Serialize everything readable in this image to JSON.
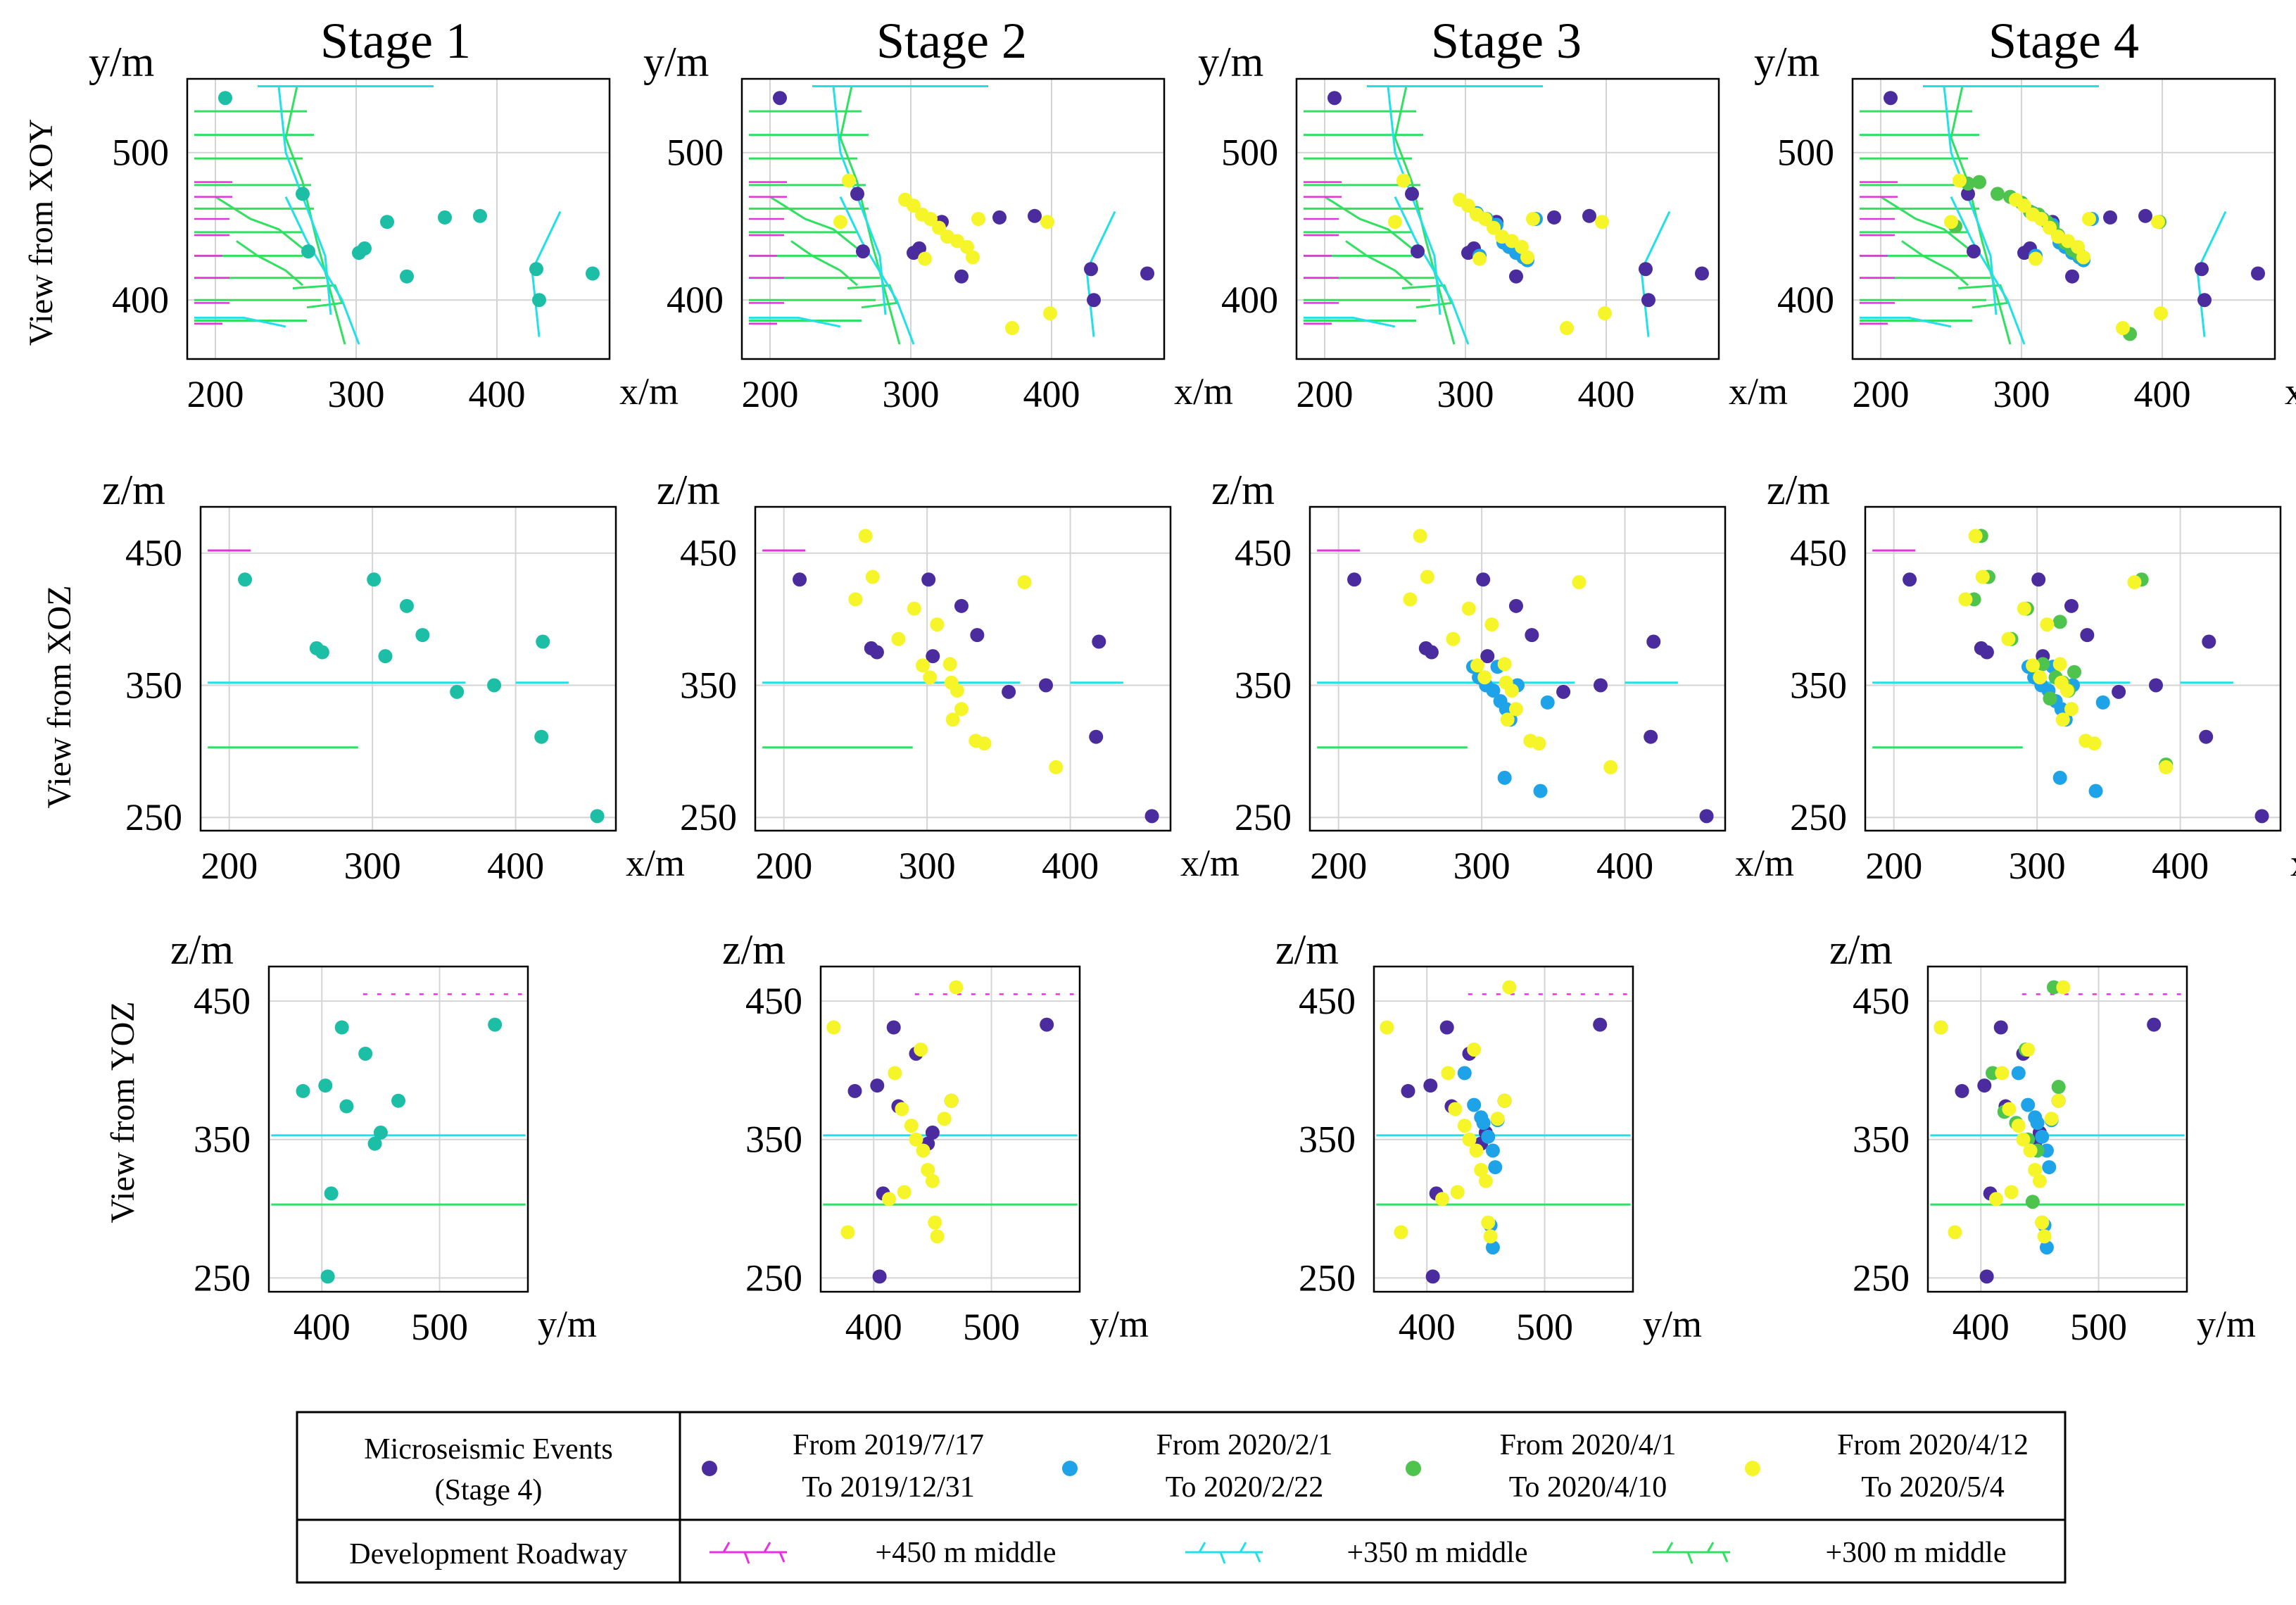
{
  "colors": {
    "period1": "#4b2c9e",
    "period2": "#1fa3e8",
    "period3": "#4ec44e",
    "period4": "#f5f52a",
    "stage1": "#1cbfa6",
    "roadway450": "#e830e0",
    "roadway350": "#22e0e8",
    "roadway300": "#30e060",
    "grid": "#d4d4d4"
  },
  "stage_titles": [
    "Stage 1",
    "Stage 2",
    "Stage 3",
    "Stage 4"
  ],
  "row_labels": [
    "View from XOY",
    "View from XOZ",
    "View from YOZ"
  ],
  "axes": {
    "xoy": {
      "xlabel": "x/m",
      "ylabel": "y/m",
      "xticks": [
        "200",
        "300",
        "400"
      ],
      "yticks": [
        "500",
        "400"
      ]
    },
    "xoz": {
      "xlabel": "x/m",
      "ylabel": "z/m",
      "xticks": [
        "200",
        "300",
        "400"
      ],
      "yticks": [
        "450",
        "350",
        "250"
      ]
    },
    "yoz": {
      "xlabel": "y/m",
      "ylabel": "z/m",
      "xticks": [
        "400",
        "500"
      ],
      "yticks": [
        "450",
        "350",
        "250"
      ]
    }
  },
  "legend": {
    "events_label": "Microseismic  Events",
    "events_sublabel": "(Stage 4)",
    "periods": [
      {
        "line1": "From 2019/7/17",
        "line2": "To 2019/12/31"
      },
      {
        "line1": "From 2020/2/1",
        "line2": "To 2020/2/22"
      },
      {
        "line1": "From 2020/4/1",
        "line2": "To 2020/4/10"
      },
      {
        "line1": "From 2020/4/12",
        "line2": "To 2020/5/4"
      }
    ],
    "roadway_label": "Development  Roadway",
    "roadways": [
      "+450 m middle",
      "+350 m middle",
      "+300 m middle"
    ]
  },
  "chart_data": [
    {
      "type": "scatter",
      "view": "XOY",
      "xlabel": "x/m",
      "ylabel": "y/m",
      "xlim": [
        180,
        480
      ],
      "ylim": [
        360,
        550
      ],
      "series": [
        {
          "name": "Stage 1 events",
          "color_key": "stage1",
          "points": [
            [
              207,
              537
            ],
            [
              262,
              472
            ],
            [
              266,
              433
            ],
            [
              302,
              432
            ],
            [
              306,
              435
            ],
            [
              322,
              453
            ],
            [
              336,
              416
            ],
            [
              363,
              456
            ],
            [
              388,
              457
            ],
            [
              428,
              421
            ],
            [
              430,
              400
            ],
            [
              468,
              418
            ]
          ]
        },
        {
          "name": "From 2019/7/17 To 2019/12/31",
          "color_key": "period1",
          "points": [
            [
              207,
              537
            ],
            [
              262,
              472
            ],
            [
              266,
              433
            ],
            [
              302,
              432
            ],
            [
              306,
              435
            ],
            [
              322,
              453
            ],
            [
              336,
              416
            ],
            [
              363,
              456
            ],
            [
              388,
              457
            ],
            [
              428,
              421
            ],
            [
              430,
              400
            ],
            [
              468,
              418
            ]
          ]
        },
        {
          "name": "From 2020/2/1 To 2020/2/22",
          "color_key": "period2",
          "points": [
            [
              308,
              459
            ],
            [
              315,
              455
            ],
            [
              322,
              451
            ],
            [
              327,
              439
            ],
            [
              331,
              436
            ],
            [
              336,
              432
            ],
            [
              341,
              429
            ],
            [
              344,
              427
            ],
            [
              310,
              430
            ],
            [
              350,
              455
            ]
          ]
        },
        {
          "name": "From 2020/4/1 To 2020/4/10",
          "color_key": "period3",
          "points": [
            [
              262,
              479
            ],
            [
              270,
              480
            ],
            [
              283,
              472
            ],
            [
              292,
              470
            ],
            [
              300,
              466
            ],
            [
              306,
              460
            ],
            [
              312,
              458
            ],
            [
              318,
              453
            ],
            [
              322,
              449
            ],
            [
              326,
              444
            ],
            [
              331,
              439
            ],
            [
              336,
              434
            ],
            [
              341,
              431
            ],
            [
              253,
              450
            ],
            [
              398,
              453
            ],
            [
              377,
              377
            ]
          ]
        },
        {
          "name": "From 2020/4/12 To 2020/5/4",
          "color_key": "period4",
          "points": [
            [
              296,
              468
            ],
            [
              302,
              464
            ],
            [
              308,
              458
            ],
            [
              314,
              455
            ],
            [
              320,
              449
            ],
            [
              326,
              443
            ],
            [
              333,
              440
            ],
            [
              340,
              436
            ],
            [
              310,
              428
            ],
            [
              344,
              429
            ],
            [
              256,
              481
            ],
            [
              250,
              453
            ],
            [
              348,
              455
            ],
            [
              397,
              453
            ],
            [
              372,
              381
            ],
            [
              399,
              391
            ]
          ]
        }
      ],
      "stage_series": {
        "Stage 1": [
          "Stage 1 events"
        ],
        "Stage 2": [
          "From 2019/7/17 To 2019/12/31",
          "From 2020/4/12 To 2020/5/4"
        ],
        "Stage 3": [
          "From 2019/7/17 To 2019/12/31",
          "From 2020/2/1 To 2020/2/22",
          "From 2020/4/12 To 2020/5/4"
        ],
        "Stage 4": [
          "From 2019/7/17 To 2019/12/31",
          "From 2020/2/1 To 2020/2/22",
          "From 2020/4/1 To 2020/4/10",
          "From 2020/4/12 To 2020/5/4"
        ]
      }
    },
    {
      "type": "scatter",
      "view": "XOZ",
      "xlabel": "x/m",
      "ylabel": "z/m",
      "xlim": [
        180,
        470
      ],
      "ylim": [
        240,
        485
      ],
      "series": [
        {
          "name": "Stage 1 events",
          "color_key": "stage1",
          "points": [
            [
              211,
              430
            ],
            [
              261,
              378
            ],
            [
              265,
              375
            ],
            [
              301,
              430
            ],
            [
              309,
              372
            ],
            [
              324,
              410
            ],
            [
              335,
              388
            ],
            [
              359,
              345
            ],
            [
              385,
              350
            ],
            [
              419,
              383
            ],
            [
              418,
              311
            ],
            [
              457,
              251
            ]
          ]
        },
        {
          "name": "From 2019/7/17 To 2019/12/31",
          "color_key": "period1",
          "points": [
            [
              211,
              430
            ],
            [
              261,
              378
            ],
            [
              265,
              375
            ],
            [
              301,
              430
            ],
            [
              304,
              372
            ],
            [
              324,
              410
            ],
            [
              335,
              388
            ],
            [
              357,
              345
            ],
            [
              383,
              350
            ],
            [
              420,
              383
            ],
            [
              418,
              311
            ],
            [
              457,
              251
            ]
          ]
        },
        {
          "name": "From 2020/2/1 To 2020/2/22",
          "color_key": "period2",
          "points": [
            [
              294,
              364
            ],
            [
              298,
              356
            ],
            [
              303,
              350
            ],
            [
              308,
              346
            ],
            [
              313,
              338
            ],
            [
              317,
              332
            ],
            [
              320,
              324
            ],
            [
              316,
              280
            ],
            [
              341,
              270
            ],
            [
              311,
              364
            ],
            [
              346,
              337
            ],
            [
              325,
              350
            ]
          ]
        },
        {
          "name": "From 2020/4/1 To 2020/4/10",
          "color_key": "period3",
          "points": [
            [
              261,
              463
            ],
            [
              266,
              432
            ],
            [
              256,
              415
            ],
            [
              282,
              385
            ],
            [
              293,
              408
            ],
            [
              316,
              398
            ],
            [
              318,
              352
            ],
            [
              322,
              346
            ],
            [
              309,
              340
            ],
            [
              326,
              360
            ],
            [
              373,
              430
            ],
            [
              390,
              290
            ],
            [
              304,
              366
            ],
            [
              313,
              356
            ]
          ]
        },
        {
          "name": "From 2020/4/12 To 2020/5/4",
          "color_key": "period4",
          "points": [
            [
              257,
              463
            ],
            [
              262,
              432
            ],
            [
              250,
              415
            ],
            [
              280,
              385
            ],
            [
              291,
              408
            ],
            [
              307,
              396
            ],
            [
              317,
              352
            ],
            [
              321,
              346
            ],
            [
              324,
              332
            ],
            [
              297,
              365
            ],
            [
              334,
              308
            ],
            [
              368,
              428
            ],
            [
              390,
              288
            ],
            [
              316,
              366
            ],
            [
              302,
              356
            ],
            [
              340,
              306
            ],
            [
              318,
              324
            ]
          ]
        }
      ],
      "stage_series": {
        "Stage 1": [
          "Stage 1 events"
        ],
        "Stage 2": [
          "From 2019/7/17 To 2019/12/31",
          "From 2020/4/12 To 2020/5/4"
        ],
        "Stage 3": [
          "From 2019/7/17 To 2019/12/31",
          "From 2020/2/1 To 2020/2/22",
          "From 2020/4/12 To 2020/5/4"
        ],
        "Stage 4": [
          "From 2019/7/17 To 2019/12/31",
          "From 2020/2/1 To 2020/2/22",
          "From 2020/4/1 To 2020/4/10",
          "From 2020/4/12 To 2020/5/4"
        ]
      }
    },
    {
      "type": "scatter",
      "view": "YOZ",
      "xlabel": "y/m",
      "ylabel": "z/m",
      "xlim": [
        355,
        575
      ],
      "ylim": [
        240,
        475
      ],
      "series": [
        {
          "name": "Stage 1 events",
          "color_key": "stage1",
          "points": [
            [
              384,
              385
            ],
            [
              403,
              389
            ],
            [
              417,
              431
            ],
            [
              421,
              374
            ],
            [
              437,
              412
            ],
            [
              445,
              347
            ],
            [
              450,
              355
            ],
            [
              465,
              378
            ],
            [
              547,
              433
            ],
            [
              408,
              311
            ],
            [
              405,
              251
            ]
          ]
        },
        {
          "name": "From 2019/7/17 To 2019/12/31",
          "color_key": "period1",
          "points": [
            [
              384,
              385
            ],
            [
              403,
              389
            ],
            [
              417,
              431
            ],
            [
              421,
              374
            ],
            [
              436,
              412
            ],
            [
              446,
              347
            ],
            [
              450,
              355
            ],
            [
              466,
              378
            ],
            [
              547,
              433
            ],
            [
              408,
              311
            ],
            [
              405,
              251
            ]
          ]
        },
        {
          "name": "From 2020/2/1 To 2020/2/22",
          "color_key": "period2",
          "points": [
            [
              432,
              398
            ],
            [
              440,
              375
            ],
            [
              448,
              362
            ],
            [
              452,
              352
            ],
            [
              456,
              342
            ],
            [
              458,
              330
            ],
            [
              454,
              288
            ],
            [
              456,
              272
            ],
            [
              446,
              366
            ],
            [
              460,
              364
            ]
          ]
        },
        {
          "name": "From 2020/4/1 To 2020/4/10",
          "color_key": "period3",
          "points": [
            [
              366,
              431
            ],
            [
              410,
              398
            ],
            [
              420,
              370
            ],
            [
              430,
              362
            ],
            [
              440,
              350
            ],
            [
              448,
              342
            ],
            [
              462,
              460
            ],
            [
              466,
              388
            ],
            [
              438,
              415
            ],
            [
              444,
              305
            ],
            [
              452,
              290
            ]
          ]
        },
        {
          "name": "From 2020/4/12 To 2020/5/4",
          "color_key": "period4",
          "points": [
            [
              366,
              431
            ],
            [
              418,
              398
            ],
            [
              424,
              372
            ],
            [
              432,
              360
            ],
            [
              436,
              350
            ],
            [
              442,
              342
            ],
            [
              446,
              328
            ],
            [
              450,
              320
            ],
            [
              460,
              365
            ],
            [
              466,
              378
            ],
            [
              470,
              460
            ],
            [
              452,
              290
            ],
            [
              454,
              280
            ],
            [
              426,
              312
            ],
            [
              440,
              415
            ],
            [
              378,
              283
            ],
            [
              413,
              307
            ]
          ]
        }
      ],
      "stage_series": {
        "Stage 1": [
          "Stage 1 events"
        ],
        "Stage 2": [
          "From 2019/7/17 To 2019/12/31",
          "From 2020/4/12 To 2020/5/4"
        ],
        "Stage 3": [
          "From 2019/7/17 To 2019/12/31",
          "From 2020/2/1 To 2020/2/22",
          "From 2020/4/12 To 2020/5/4"
        ],
        "Stage 4": [
          "From 2019/7/17 To 2019/12/31",
          "From 2020/2/1 To 2020/2/22",
          "From 2020/4/1 To 2020/4/10",
          "From 2020/4/12 To 2020/5/4"
        ]
      }
    }
  ]
}
